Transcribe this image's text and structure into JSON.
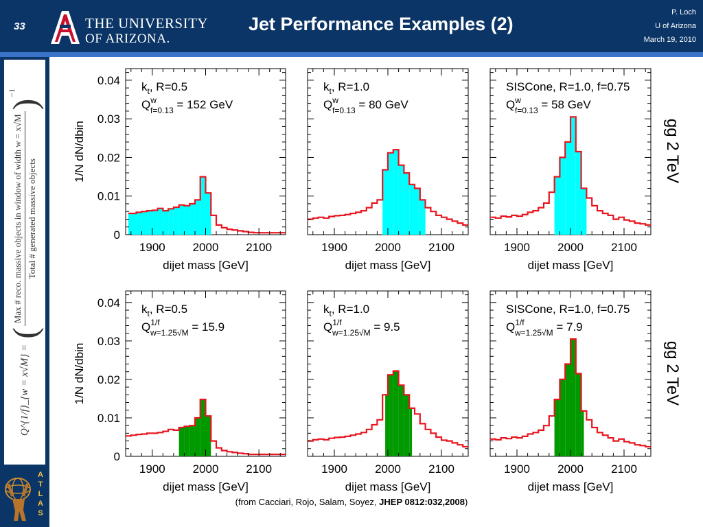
{
  "header": {
    "slide_number": "33",
    "university_line1": "THE UNIVERSITY",
    "university_line2": "OF ARIZONA.",
    "title": "Jet Performance Examples (2)",
    "author": "P. Loch",
    "affiliation": "U of Arizona",
    "date": "March 19, 2010"
  },
  "side_formula": {
    "lhs_text": "Q^{1/f}_{w = x√M} =",
    "numerator": "Max # reco. massive objects in window of width w = x√M",
    "denominator": "Total # generated massive objects",
    "exponent": "−1"
  },
  "process_labels": {
    "top": "gg 2 TeV",
    "bottom": "gg 2 TeV"
  },
  "citation": {
    "prefix": "(from Cacciari, Rojo, Salam, Soyez, ",
    "ref": "JHEP 0812:032,2008",
    "suffix": ")"
  },
  "colors": {
    "histogram_line": "#e8141e",
    "fill_top": "#00ffff",
    "fill_bottom": "#009a00",
    "header_bg": "#0b3566",
    "header_rule": "#3b73c9"
  },
  "chart_data": [
    {
      "type": "area",
      "row": "top",
      "algorithm": "kt, R=0.5",
      "measure_label": "Q^w_{f=0.13} = 152 GeV",
      "xlabel": "dijet mass [GeV]",
      "ylabel": "1/N dN/dbin",
      "xlim": [
        1850,
        2150
      ],
      "ylim": [
        0,
        0.043
      ],
      "xticks": [
        1900,
        2000,
        2100
      ],
      "yticks": [
        0,
        0.01,
        0.02,
        0.03,
        0.04
      ],
      "fill_range": [
        1855,
        2010
      ],
      "fill_color": "#00ffff",
      "bins": [
        [
          1855,
          1870,
          0.0055
        ],
        [
          1870,
          1880,
          0.0058
        ],
        [
          1880,
          1890,
          0.006
        ],
        [
          1890,
          1900,
          0.0062
        ],
        [
          1900,
          1910,
          0.0063
        ],
        [
          1910,
          1920,
          0.0068
        ],
        [
          1920,
          1930,
          0.0062
        ],
        [
          1930,
          1940,
          0.0067
        ],
        [
          1940,
          1950,
          0.0071
        ],
        [
          1950,
          1960,
          0.0077
        ],
        [
          1960,
          1970,
          0.0075
        ],
        [
          1970,
          1980,
          0.008
        ],
        [
          1980,
          1990,
          0.009
        ],
        [
          1990,
          2000,
          0.015
        ],
        [
          2000,
          2010,
          0.0108
        ],
        [
          2010,
          2020,
          0.005
        ],
        [
          2020,
          2030,
          0.0025
        ],
        [
          2030,
          2040,
          0.0018
        ],
        [
          2040,
          2050,
          0.0014
        ],
        [
          2050,
          2060,
          0.0012
        ],
        [
          2060,
          2070,
          0.001
        ],
        [
          2070,
          2080,
          0.0008
        ],
        [
          2080,
          2090,
          0.0006
        ],
        [
          2090,
          2100,
          0.0005
        ],
        [
          2100,
          2150,
          0.0005
        ]
      ]
    },
    {
      "type": "area",
      "row": "top",
      "algorithm": "kt, R=1.0",
      "measure_label": "Q^w_{f=0.13} = 80 GeV",
      "xlabel": "dijet mass [GeV]",
      "ylabel": "",
      "xlim": [
        1850,
        2150
      ],
      "ylim": [
        0,
        0.043
      ],
      "xticks": [
        1900,
        2000,
        2100
      ],
      "yticks": [
        0,
        0.01,
        0.02,
        0.03,
        0.04
      ],
      "fill_range": [
        1990,
        2070
      ],
      "fill_color": "#00ffff",
      "bins": [
        [
          1850,
          1860,
          0.004
        ],
        [
          1860,
          1870,
          0.0043
        ],
        [
          1870,
          1880,
          0.0045
        ],
        [
          1880,
          1890,
          0.0043
        ],
        [
          1890,
          1900,
          0.0047
        ],
        [
          1900,
          1910,
          0.0049
        ],
        [
          1910,
          1920,
          0.005
        ],
        [
          1920,
          1930,
          0.0052
        ],
        [
          1930,
          1940,
          0.0055
        ],
        [
          1940,
          1950,
          0.0058
        ],
        [
          1950,
          1960,
          0.0062
        ],
        [
          1960,
          1970,
          0.007
        ],
        [
          1970,
          1980,
          0.0082
        ],
        [
          1980,
          1990,
          0.009
        ],
        [
          1990,
          2000,
          0.0168
        ],
        [
          2000,
          2010,
          0.0212
        ],
        [
          2010,
          2020,
          0.022
        ],
        [
          2020,
          2030,
          0.018
        ],
        [
          2030,
          2040,
          0.016
        ],
        [
          2040,
          2050,
          0.013
        ],
        [
          2050,
          2060,
          0.012
        ],
        [
          2060,
          2070,
          0.009
        ],
        [
          2070,
          2080,
          0.007
        ],
        [
          2080,
          2090,
          0.006
        ],
        [
          2090,
          2100,
          0.005
        ],
        [
          2100,
          2110,
          0.0045
        ],
        [
          2110,
          2120,
          0.004
        ],
        [
          2120,
          2130,
          0.0035
        ],
        [
          2130,
          2140,
          0.003
        ],
        [
          2140,
          2150,
          0.0025
        ]
      ]
    },
    {
      "type": "area",
      "row": "top",
      "algorithm": "SISCone, R=1.0, f=0.75",
      "measure_label": "Q^w_{f=0.13} = 58 GeV",
      "xlabel": "dijet mass [GeV]",
      "ylabel": "",
      "xlim": [
        1850,
        2150
      ],
      "ylim": [
        0,
        0.043
      ],
      "xticks": [
        1900,
        2000,
        2100
      ],
      "yticks": [
        0,
        0.01,
        0.02,
        0.03,
        0.04
      ],
      "fill_range": [
        1970,
        2030
      ],
      "fill_color": "#00ffff",
      "bins": [
        [
          1850,
          1860,
          0.0045
        ],
        [
          1860,
          1870,
          0.0043
        ],
        [
          1870,
          1880,
          0.0048
        ],
        [
          1880,
          1890,
          0.0046
        ],
        [
          1890,
          1900,
          0.005
        ],
        [
          1900,
          1910,
          0.0048
        ],
        [
          1910,
          1920,
          0.0052
        ],
        [
          1920,
          1930,
          0.0058
        ],
        [
          1930,
          1940,
          0.0062
        ],
        [
          1940,
          1950,
          0.007
        ],
        [
          1950,
          1960,
          0.0082
        ],
        [
          1960,
          1970,
          0.011
        ],
        [
          1970,
          1980,
          0.015
        ],
        [
          1980,
          1990,
          0.02
        ],
        [
          1990,
          2000,
          0.024
        ],
        [
          2000,
          2010,
          0.0305
        ],
        [
          2010,
          2020,
          0.0215
        ],
        [
          2020,
          2030,
          0.012
        ],
        [
          2030,
          2040,
          0.0095
        ],
        [
          2040,
          2050,
          0.0075
        ],
        [
          2050,
          2060,
          0.0062
        ],
        [
          2060,
          2070,
          0.0055
        ],
        [
          2070,
          2080,
          0.005
        ],
        [
          2080,
          2090,
          0.004
        ],
        [
          2090,
          2100,
          0.0045
        ],
        [
          2100,
          2110,
          0.0038
        ],
        [
          2110,
          2120,
          0.0035
        ],
        [
          2120,
          2130,
          0.003
        ],
        [
          2130,
          2140,
          0.0028
        ],
        [
          2140,
          2150,
          0.0025
        ]
      ]
    },
    {
      "type": "area",
      "row": "bottom",
      "algorithm": "kt, R=0.5",
      "measure_label": "Q^{1/f}_{w=1.25√M} = 15.9",
      "xlabel": "dijet mass [GeV]",
      "ylabel": "1/N dN/dbin",
      "xlim": [
        1850,
        2150
      ],
      "ylim": [
        0,
        0.043
      ],
      "xticks": [
        1900,
        2000,
        2100
      ],
      "yticks": [
        0,
        0.01,
        0.02,
        0.03,
        0.04
      ],
      "fill_range": [
        1950,
        2010
      ],
      "fill_color": "#009a00",
      "bins": [
        [
          1850,
          1860,
          0.0053
        ],
        [
          1860,
          1870,
          0.0055
        ],
        [
          1870,
          1880,
          0.0057
        ],
        [
          1880,
          1890,
          0.0058
        ],
        [
          1890,
          1900,
          0.006
        ],
        [
          1900,
          1910,
          0.006
        ],
        [
          1910,
          1920,
          0.0062
        ],
        [
          1920,
          1930,
          0.0065
        ],
        [
          1930,
          1940,
          0.007
        ],
        [
          1940,
          1950,
          0.0068
        ],
        [
          1950,
          1960,
          0.0075
        ],
        [
          1960,
          1970,
          0.0078
        ],
        [
          1970,
          1980,
          0.008
        ],
        [
          1980,
          1990,
          0.01
        ],
        [
          1990,
          2000,
          0.0148
        ],
        [
          2000,
          2010,
          0.0105
        ],
        [
          2010,
          2020,
          0.004
        ],
        [
          2020,
          2030,
          0.0022
        ],
        [
          2030,
          2040,
          0.0015
        ],
        [
          2040,
          2050,
          0.0012
        ],
        [
          2050,
          2060,
          0.001
        ],
        [
          2060,
          2070,
          0.0008
        ],
        [
          2070,
          2080,
          0.0007
        ],
        [
          2080,
          2090,
          0.0005
        ],
        [
          2090,
          2100,
          0.0005
        ],
        [
          2100,
          2150,
          0.0005
        ]
      ]
    },
    {
      "type": "area",
      "row": "bottom",
      "algorithm": "kt, R=1.0",
      "measure_label": "Q^{1/f}_{w=1.25√M} = 9.5",
      "xlabel": "dijet mass [GeV]",
      "ylabel": "",
      "xlim": [
        1850,
        2150
      ],
      "ylim": [
        0,
        0.043
      ],
      "xticks": [
        1900,
        2000,
        2100
      ],
      "yticks": [
        0,
        0.01,
        0.02,
        0.03,
        0.04
      ],
      "fill_range": [
        1995,
        2045
      ],
      "fill_color": "#009a00",
      "bins": [
        [
          1850,
          1860,
          0.004
        ],
        [
          1860,
          1870,
          0.0043
        ],
        [
          1870,
          1880,
          0.0045
        ],
        [
          1880,
          1890,
          0.0043
        ],
        [
          1890,
          1900,
          0.0047
        ],
        [
          1900,
          1910,
          0.0049
        ],
        [
          1910,
          1920,
          0.005
        ],
        [
          1920,
          1930,
          0.0052
        ],
        [
          1930,
          1940,
          0.0055
        ],
        [
          1940,
          1950,
          0.0058
        ],
        [
          1950,
          1960,
          0.0062
        ],
        [
          1960,
          1970,
          0.007
        ],
        [
          1970,
          1980,
          0.0082
        ],
        [
          1980,
          1990,
          0.0095
        ],
        [
          1990,
          2000,
          0.016
        ],
        [
          2000,
          2010,
          0.0212
        ],
        [
          2010,
          2020,
          0.0222
        ],
        [
          2020,
          2030,
          0.0185
        ],
        [
          2030,
          2040,
          0.016
        ],
        [
          2040,
          2050,
          0.0125
        ],
        [
          2050,
          2060,
          0.011
        ],
        [
          2060,
          2070,
          0.0085
        ],
        [
          2070,
          2080,
          0.007
        ],
        [
          2080,
          2090,
          0.006
        ],
        [
          2090,
          2100,
          0.005
        ],
        [
          2100,
          2110,
          0.0042
        ],
        [
          2110,
          2120,
          0.004
        ],
        [
          2120,
          2130,
          0.0035
        ],
        [
          2130,
          2140,
          0.003
        ],
        [
          2140,
          2150,
          0.0025
        ]
      ]
    },
    {
      "type": "area",
      "row": "bottom",
      "algorithm": "SISCone, R=1.0, f=0.75",
      "measure_label": "Q^{1/f}_{w=1.25√M} = 7.9",
      "xlabel": "dijet mass [GeV]",
      "ylabel": "",
      "xlim": [
        1850,
        2150
      ],
      "ylim": [
        0,
        0.043
      ],
      "xticks": [
        1900,
        2000,
        2100
      ],
      "yticks": [
        0,
        0.01,
        0.02,
        0.03,
        0.04
      ],
      "fill_range": [
        1970,
        2025
      ],
      "fill_color": "#009a00",
      "bins": [
        [
          1850,
          1860,
          0.0045
        ],
        [
          1860,
          1870,
          0.0043
        ],
        [
          1870,
          1880,
          0.0048
        ],
        [
          1880,
          1890,
          0.0046
        ],
        [
          1890,
          1900,
          0.005
        ],
        [
          1900,
          1910,
          0.0048
        ],
        [
          1910,
          1920,
          0.0052
        ],
        [
          1920,
          1930,
          0.0058
        ],
        [
          1930,
          1940,
          0.0062
        ],
        [
          1940,
          1950,
          0.0068
        ],
        [
          1950,
          1960,
          0.008
        ],
        [
          1960,
          1970,
          0.0105
        ],
        [
          1970,
          1980,
          0.0148
        ],
        [
          1980,
          1990,
          0.02
        ],
        [
          1990,
          2000,
          0.024
        ],
        [
          2000,
          2010,
          0.0305
        ],
        [
          2010,
          2020,
          0.0215
        ],
        [
          2020,
          2030,
          0.0118
        ],
        [
          2030,
          2040,
          0.0095
        ],
        [
          2040,
          2050,
          0.0075
        ],
        [
          2050,
          2060,
          0.0062
        ],
        [
          2060,
          2070,
          0.0055
        ],
        [
          2070,
          2080,
          0.0048
        ],
        [
          2080,
          2090,
          0.004
        ],
        [
          2090,
          2100,
          0.0045
        ],
        [
          2100,
          2110,
          0.0038
        ],
        [
          2110,
          2120,
          0.0035
        ],
        [
          2120,
          2130,
          0.003
        ],
        [
          2130,
          2140,
          0.0028
        ],
        [
          2140,
          2150,
          0.0025
        ]
      ]
    }
  ]
}
